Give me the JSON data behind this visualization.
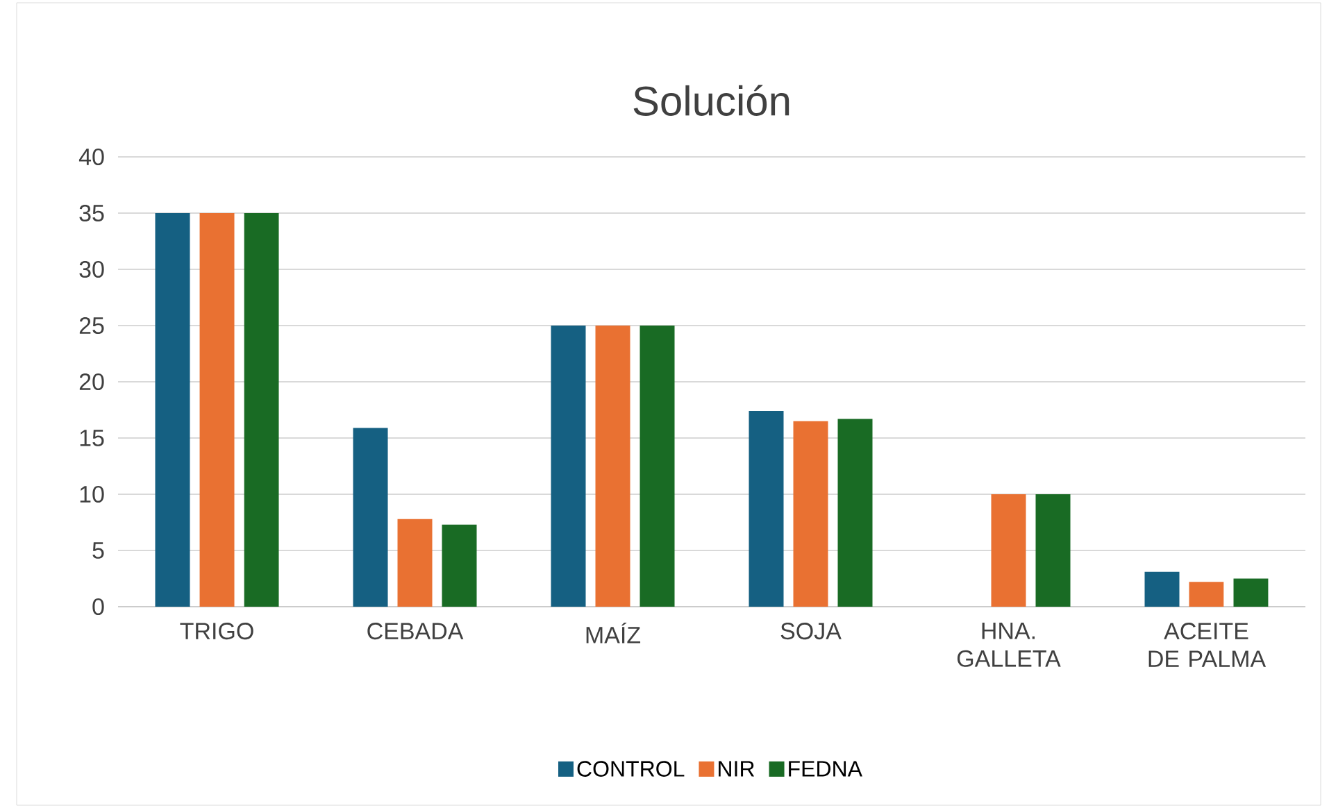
{
  "chart_data": {
    "type": "bar",
    "title": "Solución",
    "categories": [
      "TRIGO",
      "CEBADA",
      "MAÍZ",
      "SOJA",
      "HNA. GALLETA",
      "ACEITE DE PALMA"
    ],
    "series": [
      {
        "name": "CONTROL",
        "color": "#156082",
        "values": [
          35,
          15.9,
          25,
          17.4,
          0,
          3.1
        ]
      },
      {
        "name": "NIR",
        "color": "#e97132",
        "values": [
          35,
          7.8,
          25,
          16.5,
          10,
          2.2
        ]
      },
      {
        "name": "FEDNA",
        "color": "#196b24",
        "values": [
          35,
          7.3,
          25,
          16.7,
          10,
          2.5
        ]
      }
    ],
    "ylim": [
      0,
      40
    ],
    "yticks": [
      0,
      5,
      10,
      15,
      20,
      25,
      30,
      35,
      40
    ],
    "grid": "y",
    "legend": "bottom"
  }
}
